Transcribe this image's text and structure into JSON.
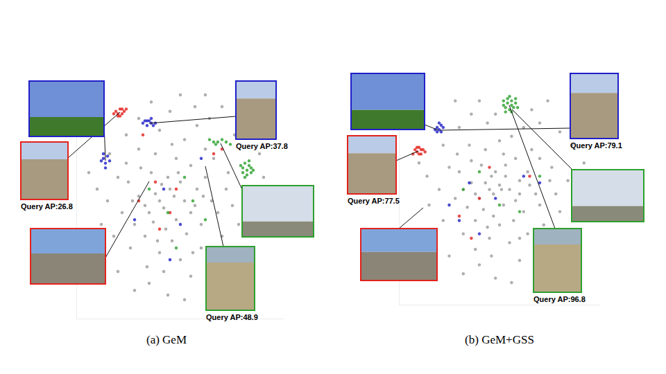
{
  "chart_data": [
    {
      "type": "scatter",
      "title": "(a) GeM",
      "xlim": [
        0,
        100
      ],
      "ylim": [
        0,
        100
      ],
      "grid": false,
      "tick_labels": false,
      "marker": "circle",
      "series": [
        {
          "color": "#9a9a9a",
          "values": [
            [
              40,
              50
            ],
            [
              42,
              47
            ],
            [
              38,
              53
            ],
            [
              45,
              55
            ],
            [
              35,
              45
            ],
            [
              48,
              42
            ],
            [
              30,
              52
            ],
            [
              52,
              50
            ],
            [
              44,
              60
            ],
            [
              36,
              62
            ],
            [
              50,
              58
            ],
            [
              28,
              40
            ],
            [
              55,
              45
            ],
            [
              33,
              35
            ],
            [
              46,
              33
            ],
            [
              40,
              28
            ],
            [
              58,
              55
            ],
            [
              25,
              58
            ],
            [
              60,
              40
            ],
            [
              38,
              70
            ],
            [
              48,
              68
            ],
            [
              30,
              72
            ],
            [
              55,
              65
            ],
            [
              62,
              60
            ],
            [
              22,
              45
            ],
            [
              20,
              60
            ],
            [
              26,
              30
            ],
            [
              50,
              25
            ],
            [
              42,
              20
            ],
            [
              35,
              15
            ],
            [
              55,
              18
            ],
            [
              60,
              30
            ],
            [
              65,
              50
            ],
            [
              68,
              45
            ],
            [
              70,
              35
            ],
            [
              18,
              35
            ],
            [
              15,
              50
            ],
            [
              24,
              78
            ],
            [
              40,
              80
            ],
            [
              52,
              76
            ],
            [
              45,
              88
            ],
            [
              30,
              85
            ],
            [
              58,
              82
            ],
            [
              62,
              72
            ],
            [
              66,
              68
            ],
            [
              72,
              55
            ],
            [
              75,
              48
            ],
            [
              78,
              40
            ],
            [
              34,
              22
            ],
            [
              44,
              10
            ],
            [
              28,
              12
            ],
            [
              52,
              8
            ],
            [
              20,
              20
            ],
            [
              12,
              40
            ],
            [
              10,
              55
            ],
            [
              16,
              70
            ],
            [
              36,
              92
            ],
            [
              50,
              95
            ],
            [
              57,
              90
            ],
            [
              64,
              85
            ],
            [
              43,
              38
            ],
            [
              37,
              41
            ],
            [
              47,
              52
            ],
            [
              41,
              57
            ],
            [
              33,
              48
            ],
            [
              53,
              36
            ],
            [
              39,
              33
            ],
            [
              57,
              48
            ],
            [
              31,
              64
            ],
            [
              49,
              62
            ],
            [
              27,
              50
            ],
            [
              61,
              52
            ],
            [
              24,
              66
            ],
            [
              46,
              74
            ],
            [
              56,
              28
            ],
            [
              66,
              25
            ],
            [
              73,
              62
            ],
            [
              80,
              55
            ],
            [
              85,
              45
            ],
            [
              88,
              70
            ],
            [
              90,
              60
            ],
            [
              8,
              30
            ],
            [
              6,
              62
            ],
            [
              62,
              95
            ],
            [
              70,
              90
            ],
            [
              76,
              78
            ],
            [
              82,
              85
            ]
          ]
        },
        {
          "color": "#e3211c",
          "values": [
            [
              19,
              88
            ],
            [
              20,
              87
            ],
            [
              21,
              89
            ],
            [
              22,
              87
            ],
            [
              23,
              88
            ],
            [
              20,
              86
            ],
            [
              21,
              86
            ],
            [
              24,
              89
            ],
            [
              18,
              87
            ],
            [
              22,
              89
            ],
            [
              32,
              78
            ],
            [
              45,
              45
            ],
            [
              40,
              38
            ],
            [
              30,
              50
            ],
            [
              48,
              55
            ],
            [
              66,
              70
            ],
            [
              70,
              72
            ],
            [
              38,
              58
            ]
          ]
        },
        {
          "color": "#1f1fc8",
          "values": [
            [
              32,
              83
            ],
            [
              33,
              84
            ],
            [
              34,
              82
            ],
            [
              35,
              84
            ],
            [
              36,
              83
            ],
            [
              37,
              82
            ],
            [
              38,
              83
            ],
            [
              34,
              84
            ],
            [
              36,
              85
            ],
            [
              13,
              68
            ],
            [
              14,
              66
            ],
            [
              15,
              69
            ],
            [
              16,
              67
            ],
            [
              14,
              64
            ],
            [
              13,
              70
            ],
            [
              12,
              67
            ],
            [
              42,
              55
            ],
            [
              50,
              40
            ],
            [
              60,
              68
            ],
            [
              45,
              25
            ],
            [
              28,
              42
            ]
          ]
        },
        {
          "color": "#2ca02c",
          "values": [
            [
              80,
              64
            ],
            [
              81,
              66
            ],
            [
              82,
              63
            ],
            [
              83,
              65
            ],
            [
              84,
              64
            ],
            [
              82,
              61
            ],
            [
              80,
              62
            ],
            [
              84,
              62
            ],
            [
              83,
              67
            ],
            [
              81,
              60
            ],
            [
              85,
              63
            ],
            [
              79,
              65
            ],
            [
              64,
              76
            ],
            [
              66,
              75
            ],
            [
              68,
              75
            ],
            [
              70,
              76
            ],
            [
              72,
              75
            ],
            [
              74,
              74
            ],
            [
              67,
              74
            ],
            [
              52,
              60
            ],
            [
              44,
              45
            ],
            [
              56,
              50
            ],
            [
              62,
              42
            ],
            [
              48,
              30
            ],
            [
              35,
              55
            ]
          ]
        }
      ],
      "annotations": [
        {
          "text": "Query AP:26.8"
        },
        {
          "text": "Query AP:37.8"
        },
        {
          "text": "Query AP:48.9"
        }
      ]
    },
    {
      "type": "scatter",
      "title": "(b) GeM+GSS",
      "xlim": [
        0,
        100
      ],
      "ylim": [
        0,
        100
      ],
      "grid": false,
      "tick_labels": false,
      "marker": "circle",
      "series": [
        {
          "color": "#9a9a9a",
          "values": [
            [
              45,
              52
            ],
            [
              47,
              50
            ],
            [
              43,
              55
            ],
            [
              50,
              54
            ],
            [
              40,
              48
            ],
            [
              52,
              45
            ],
            [
              36,
              55
            ],
            [
              55,
              52
            ],
            [
              48,
              60
            ],
            [
              41,
              63
            ],
            [
              53,
              58
            ],
            [
              34,
              44
            ],
            [
              58,
              47
            ],
            [
              38,
              38
            ],
            [
              50,
              36
            ],
            [
              45,
              30
            ],
            [
              60,
              56
            ],
            [
              30,
              60
            ],
            [
              62,
              42
            ],
            [
              43,
              70
            ],
            [
              52,
              68
            ],
            [
              35,
              72
            ],
            [
              58,
              66
            ],
            [
              64,
              60
            ],
            [
              28,
              48
            ],
            [
              25,
              62
            ],
            [
              32,
              32
            ],
            [
              55,
              28
            ],
            [
              46,
              22
            ],
            [
              40,
              18
            ],
            [
              60,
              20
            ],
            [
              64,
              32
            ],
            [
              68,
              50
            ],
            [
              70,
              45
            ],
            [
              72,
              36
            ],
            [
              22,
              38
            ],
            [
              20,
              52
            ],
            [
              30,
              80
            ],
            [
              44,
              82
            ],
            [
              56,
              76
            ],
            [
              48,
              86
            ],
            [
              36,
              86
            ],
            [
              62,
              80
            ],
            [
              66,
              70
            ],
            [
              70,
              66
            ],
            [
              75,
              56
            ],
            [
              78,
              50
            ],
            [
              80,
              42
            ],
            [
              38,
              25
            ],
            [
              48,
              12
            ],
            [
              32,
              14
            ],
            [
              56,
              10
            ],
            [
              25,
              22
            ],
            [
              15,
              45
            ],
            [
              14,
              58
            ],
            [
              22,
              72
            ],
            [
              40,
              92
            ],
            [
              28,
              92
            ],
            [
              66,
              88
            ],
            [
              70,
              82
            ],
            [
              47,
              40
            ],
            [
              42,
              43
            ],
            [
              51,
              52
            ],
            [
              46,
              58
            ],
            [
              38,
              50
            ],
            [
              57,
              38
            ],
            [
              44,
              35
            ],
            [
              60,
              50
            ],
            [
              36,
              65
            ],
            [
              53,
              63
            ],
            [
              32,
              52
            ],
            [
              65,
              54
            ],
            [
              29,
              68
            ],
            [
              50,
              74
            ],
            [
              60,
              30
            ],
            [
              70,
              26
            ],
            [
              76,
              62
            ],
            [
              84,
              56
            ],
            [
              88,
              46
            ],
            [
              86,
              72
            ],
            [
              92,
              64
            ],
            [
              12,
              32
            ],
            [
              10,
              64
            ],
            [
              74,
              92
            ],
            [
              80,
              78
            ]
          ]
        },
        {
          "color": "#e3211c",
          "values": [
            [
              8,
              70
            ],
            [
              9,
              69
            ],
            [
              10,
              71
            ],
            [
              11,
              68
            ],
            [
              12,
              70
            ],
            [
              10,
              68
            ],
            [
              9,
              71
            ],
            [
              13,
              69
            ],
            [
              11,
              70
            ],
            [
              7,
              68
            ],
            [
              45,
              62
            ],
            [
              40,
              48
            ],
            [
              30,
              40
            ],
            [
              36,
              30
            ],
            [
              65,
              58
            ]
          ]
        },
        {
          "color": "#1f1fc8",
          "values": [
            [
              19,
              80
            ],
            [
              20,
              79
            ],
            [
              21,
              81
            ],
            [
              19,
              78
            ],
            [
              20,
              82
            ],
            [
              21,
              78
            ],
            [
              22,
              80
            ],
            [
              18,
              79
            ],
            [
              48,
              48
            ],
            [
              62,
              58
            ],
            [
              70,
              55
            ],
            [
              25,
              45
            ],
            [
              30,
              38
            ],
            [
              40,
              32
            ],
            [
              35,
              55
            ]
          ]
        },
        {
          "color": "#2ca02c",
          "values": [
            [
              52,
              92
            ],
            [
              54,
              91
            ],
            [
              56,
              92
            ],
            [
              58,
              91
            ],
            [
              53,
              89
            ],
            [
              55,
              88
            ],
            [
              57,
              89
            ],
            [
              54,
              93
            ],
            [
              56,
              90
            ],
            [
              59,
              89
            ],
            [
              52,
              90
            ],
            [
              55,
              94
            ],
            [
              58,
              93
            ],
            [
              53,
              87
            ],
            [
              56,
              87
            ],
            [
              40,
              60
            ],
            [
              50,
              45
            ],
            [
              60,
              42
            ],
            [
              32,
              52
            ],
            [
              70,
              58
            ]
          ]
        }
      ],
      "annotations": [
        {
          "text": "Query AP:77.5"
        },
        {
          "text": "Query AP:79.1"
        },
        {
          "text": "Query AP:96.8"
        }
      ]
    }
  ]
}
